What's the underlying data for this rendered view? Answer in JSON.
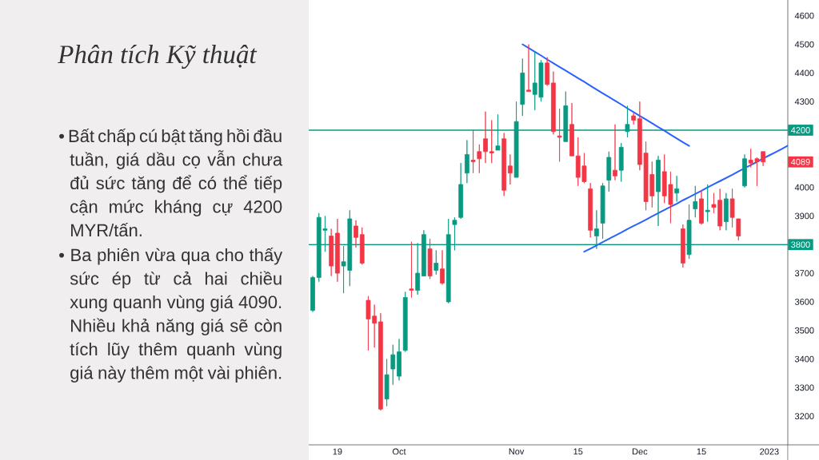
{
  "chart_data": {
    "type": "candlestick",
    "title": "Phân tích Kỹ thuật",
    "annotations": [
      "• Bất chấp cú bật tăng hồi đầu tuần, giá dầu cọ vẫn chưa đủ sức tăng để có thể tiếp cận mức kháng cự 4200 MYR/tấn.",
      "• Ba phiên vừa qua cho thấy sức ép từ cả hai chiều xung quanh vùng giá 4090. Nhiều khả năng giá sẽ còn tích lũy thêm quanh vùng giá này thêm một vài phiên.",
      {
        "text": "4089",
        "y": 4089
      }
    ],
    "categories": [
      null,
      null,
      null,
      null,
      "19",
      null,
      null,
      null,
      null,
      null,
      null,
      null,
      null,
      null,
      "Oct",
      null,
      null,
      null,
      null,
      null,
      null,
      null,
      null,
      null,
      null,
      null,
      null,
      null,
      null,
      null,
      null,
      null,
      null,
      "Nov",
      null,
      null,
      null,
      null,
      null,
      null,
      null,
      null,
      null,
      "15",
      null,
      null,
      null,
      null,
      null,
      null,
      null,
      null,
      null,
      "Dec",
      null,
      null,
      null,
      null,
      null,
      null,
      null,
      null,
      null,
      "15",
      null,
      null,
      null,
      null,
      null,
      null,
      null,
      null,
      null,
      null,
      "2023",
      null,
      null,
      null
    ],
    "ohlc": [
      [
        3570,
        3690,
        3565,
        3685
      ],
      [
        3685,
        3910,
        3670,
        3895
      ],
      [
        3850,
        3900,
        3775,
        3855
      ],
      [
        3830,
        3855,
        3690,
        3725
      ],
      [
        3840,
        3890,
        3670,
        3700
      ],
      [
        3725,
        3795,
        3630,
        3740
      ],
      [
        3710,
        3920,
        3655,
        3890
      ],
      [
        3865,
        3885,
        3790,
        3825
      ],
      [
        3835,
        3860,
        3730,
        3735
      ],
      [
        3605,
        3620,
        3430,
        3540
      ],
      [
        3550,
        3590,
        3440,
        3525
      ],
      [
        3530,
        3560,
        3220,
        3225
      ],
      [
        3260,
        3400,
        3235,
        3345
      ],
      [
        3365,
        3450,
        3310,
        3415
      ],
      [
        3340,
        3470,
        3325,
        3425
      ],
      [
        3430,
        3635,
        3425,
        3615
      ],
      [
        3645,
        3810,
        3615,
        3640
      ],
      [
        3640,
        3805,
        3625,
        3700
      ],
      [
        3690,
        3850,
        3690,
        3835
      ],
      [
        3785,
        3820,
        3680,
        3690
      ],
      [
        3710,
        3780,
        3695,
        3735
      ],
      [
        3715,
        3780,
        3660,
        3665
      ],
      [
        3600,
        3890,
        3595,
        3835
      ],
      [
        3870,
        3895,
        3780,
        3885
      ],
      [
        3895,
        4085,
        3890,
        4010
      ],
      [
        4050,
        4165,
        4015,
        4115
      ],
      [
        4095,
        4200,
        4050,
        4090
      ],
      [
        4125,
        4150,
        4050,
        4100
      ],
      [
        4170,
        4265,
        4085,
        4125
      ],
      [
        4125,
        4235,
        4085,
        4120
      ],
      [
        4130,
        4255,
        4130,
        4145
      ],
      [
        4170,
        4190,
        3970,
        3990
      ],
      [
        4075,
        4115,
        4010,
        4050
      ],
      [
        4035,
        4300,
        4035,
        4230
      ],
      [
        4290,
        4450,
        4250,
        4400
      ],
      [
        4340,
        4500,
        4335,
        4335
      ],
      [
        4325,
        4475,
        4270,
        4365
      ],
      [
        4315,
        4445,
        4300,
        4435
      ],
      [
        4435,
        4455,
        4355,
        4360
      ],
      [
        4365,
        4405,
        4185,
        4195
      ],
      [
        4180,
        4275,
        4090,
        4175
      ],
      [
        4160,
        4335,
        4160,
        4285
      ],
      [
        4220,
        4295,
        4110,
        4110
      ],
      [
        4110,
        4175,
        4005,
        4035
      ],
      [
        4075,
        4120,
        4015,
        4020
      ],
      [
        3995,
        4015,
        3825,
        3850
      ],
      [
        3830,
        3920,
        3785,
        3855
      ],
      [
        3875,
        4015,
        3820,
        4005
      ],
      [
        4025,
        4125,
        3985,
        4105
      ],
      [
        4060,
        4220,
        4025,
        4040
      ],
      [
        4060,
        4155,
        4020,
        4140
      ],
      [
        4195,
        4285,
        4175,
        4220
      ],
      [
        4250,
        4260,
        4220,
        4235
      ],
      [
        4240,
        4300,
        4060,
        4080
      ],
      [
        4120,
        4160,
        3920,
        3950
      ],
      [
        4045,
        4090,
        3930,
        3970
      ],
      [
        3985,
        4110,
        3865,
        4095
      ],
      [
        4055,
        4115,
        3945,
        3970
      ],
      [
        4010,
        4055,
        3875,
        3940
      ],
      [
        3980,
        4040,
        3950,
        3995
      ],
      [
        3855,
        3870,
        3720,
        3735
      ],
      [
        3765,
        3940,
        3750,
        3885
      ],
      [
        3925,
        4005,
        3895,
        3950
      ],
      [
        3960,
        3990,
        3870,
        3875
      ],
      [
        3915,
        4010,
        3880,
        3920
      ],
      [
        3940,
        3980,
        3910,
        3930
      ],
      [
        3955,
        3995,
        3850,
        3865
      ],
      [
        3880,
        3980,
        3850,
        3960
      ],
      [
        3960,
        3995,
        3860,
        3895
      ],
      [
        3890,
        3890,
        3815,
        3830
      ],
      [
        4005,
        4115,
        4000,
        4100
      ],
      [
        4095,
        4135,
        4070,
        4085
      ],
      [
        4100,
        4105,
        4005,
        4090
      ],
      [
        4125,
        4125,
        4075,
        4089
      ],
      null,
      null,
      null,
      null
    ],
    "colors": [
      "#089981",
      "#089981",
      "#089981",
      "#f23645",
      "#f23645",
      "#089981",
      "#089981",
      "#f23645",
      "#f23645",
      "#f23645",
      "#f23645",
      "#f23645",
      "#089981",
      "#089981",
      "#089981",
      "#089981",
      "#f23645",
      "#089981",
      "#089981",
      "#f23645",
      "#089981",
      "#f23645",
      "#089981",
      "#089981",
      "#089981",
      "#089981",
      "#f23645",
      "#f23645",
      "#f23645",
      "#f23645",
      "#089981",
      "#f23645",
      "#f23645",
      "#089981",
      "#089981",
      "#f23645",
      "#089981",
      "#089981",
      "#f23645",
      "#f23645",
      "#f23645",
      "#089981",
      "#f23645",
      "#f23645",
      "#f23645",
      "#f23645",
      "#089981",
      "#089981",
      "#089981",
      "#f23645",
      "#089981",
      "#089981",
      "#f23645",
      "#f23645",
      "#f23645",
      "#f23645",
      "#089981",
      "#f23645",
      "#f23645",
      "#089981",
      "#f23645",
      "#089981",
      "#089981",
      "#f23645",
      "#089981",
      "#f23645",
      "#f23645",
      "#089981",
      "#f23645",
      "#f23645",
      "#089981",
      "#f23645",
      "#f23645",
      "#f23645",
      null,
      null,
      null,
      null
    ],
    "series": [
      {
        "type": "line",
        "color": "#2962ff",
        "values": [
          null,
          null,
          null,
          null,
          null,
          null,
          null,
          null,
          null,
          null,
          null,
          null,
          null,
          null,
          null,
          null,
          null,
          null,
          null,
          null,
          null,
          null,
          null,
          null,
          null,
          null,
          null,
          null,
          null,
          null,
          null,
          null,
          null,
          null,
          4500,
          4487,
          4474,
          4461,
          4447,
          4434,
          4421,
          4408,
          4395,
          4382,
          4369,
          4355,
          4342,
          4329,
          4316,
          4303,
          4290,
          4276,
          4263,
          4250,
          4237,
          4224,
          4211,
          4198,
          4184,
          4171,
          4158,
          4145,
          null,
          null,
          null,
          null,
          null,
          null,
          null,
          null,
          null,
          null,
          null,
          null,
          null,
          null,
          null,
          null
        ]
      },
      {
        "type": "line",
        "color": "#2962ff",
        "values": [
          null,
          null,
          null,
          null,
          null,
          null,
          null,
          null,
          null,
          null,
          null,
          null,
          null,
          null,
          null,
          null,
          null,
          null,
          null,
          null,
          null,
          null,
          null,
          null,
          null,
          null,
          null,
          null,
          null,
          null,
          null,
          null,
          null,
          null,
          null,
          null,
          null,
          null,
          null,
          null,
          null,
          null,
          null,
          null,
          3775,
          3786,
          3797,
          3809,
          3820,
          3831,
          3842,
          3854,
          3865,
          3876,
          3887,
          3899,
          3910,
          3921,
          3932,
          3943,
          3955,
          3966,
          3977,
          3988,
          4000,
          4011,
          4022,
          4033,
          4044,
          4056,
          4067,
          4078,
          4089,
          4101,
          4112,
          4123,
          4134,
          4146
        ]
      }
    ],
    "ylim": [
      3100,
      4655
    ],
    "yticks": [
      3200,
      3300,
      3400,
      3500,
      3600,
      3700,
      3900,
      4000,
      4300,
      4400,
      4500,
      4600
    ],
    "ref_lines": [
      {
        "axis": "y",
        "value": 4200,
        "label": "4200",
        "color": "#089981"
      },
      {
        "axis": "y",
        "value": 3800,
        "label": "3800",
        "color": "#089981"
      }
    ]
  }
}
